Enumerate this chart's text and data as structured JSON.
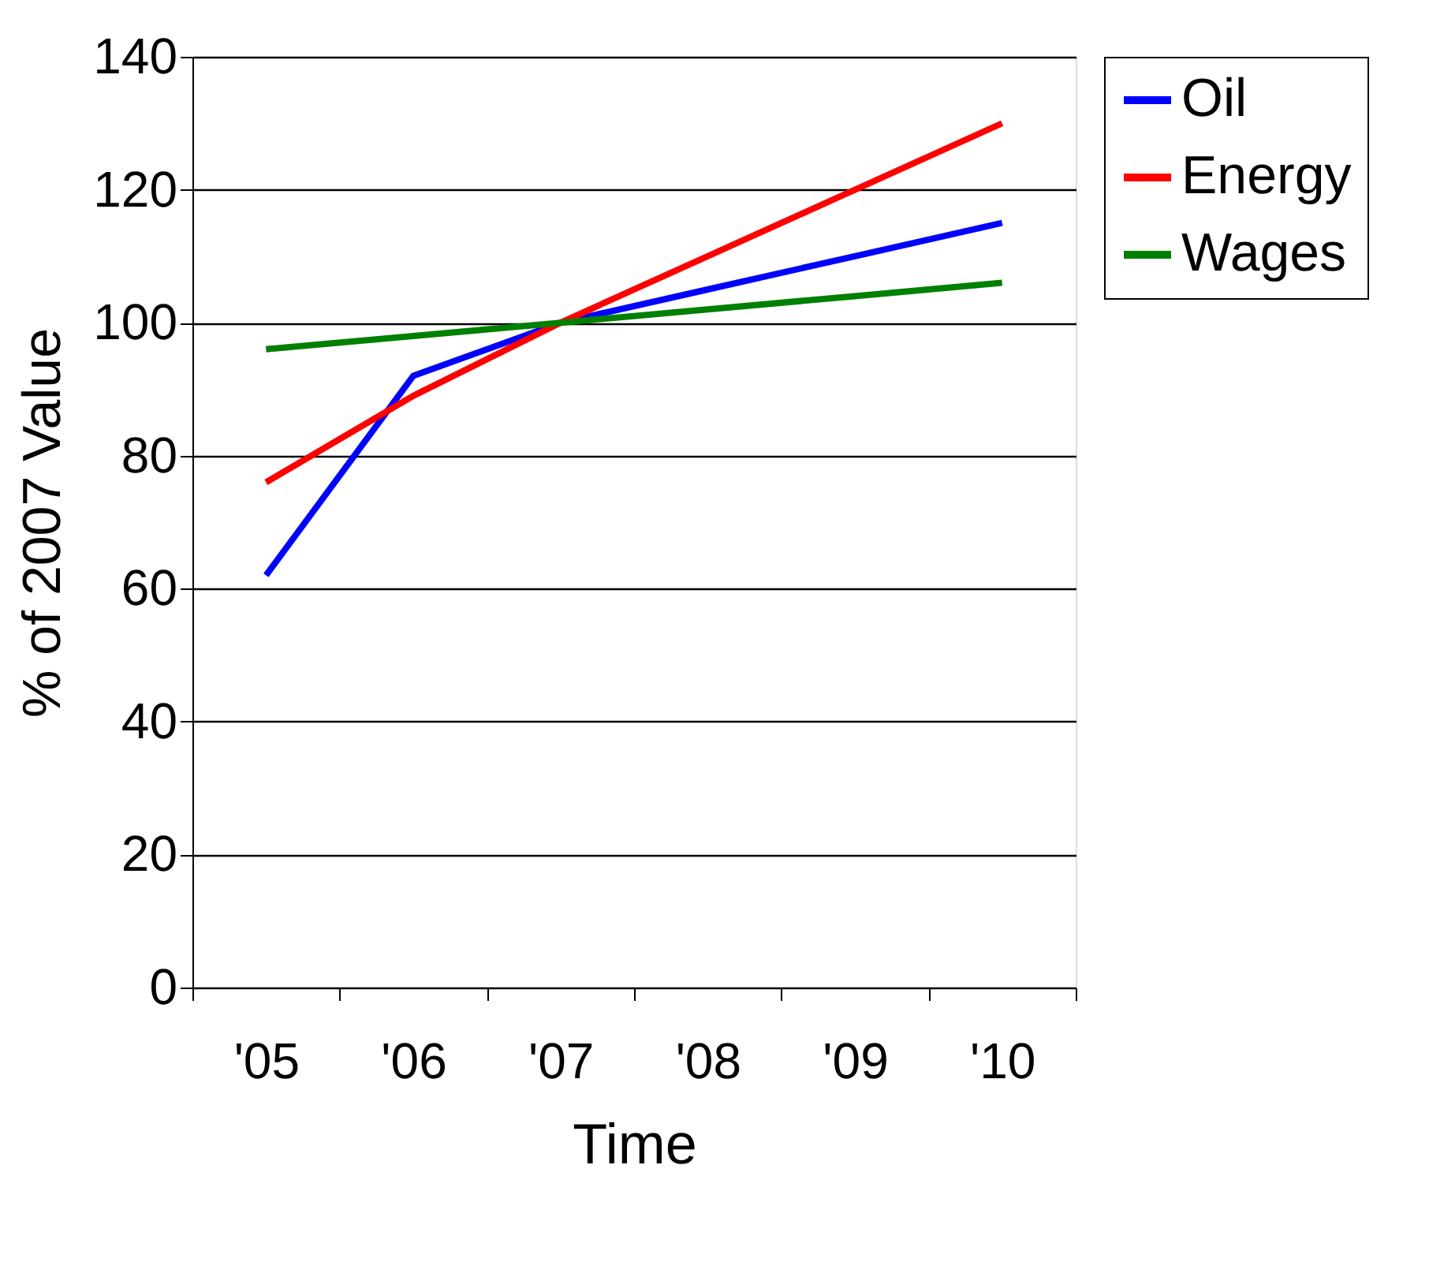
{
  "chart_data": {
    "type": "line",
    "xlabel": "Time",
    "ylabel": "% of 2007 Value",
    "categories": [
      "'05",
      "'06",
      "'07",
      "'08",
      "'09",
      "'10"
    ],
    "series": [
      {
        "name": "Oil",
        "color": "#0000ff",
        "values": [
          62,
          92,
          100,
          105,
          110,
          115
        ]
      },
      {
        "name": "Energy",
        "color": "#ff0000",
        "values": [
          76,
          89,
          100,
          110,
          120,
          130
        ]
      },
      {
        "name": "Wages",
        "color": "#008000",
        "values": [
          96,
          98,
          100,
          102,
          104,
          106
        ]
      }
    ],
    "ylim": [
      0,
      140
    ],
    "yticks": [
      0,
      20,
      40,
      60,
      80,
      100,
      120,
      140
    ],
    "grid": "y",
    "legend": "right",
    "marker": "none",
    "line_style": "solid"
  }
}
